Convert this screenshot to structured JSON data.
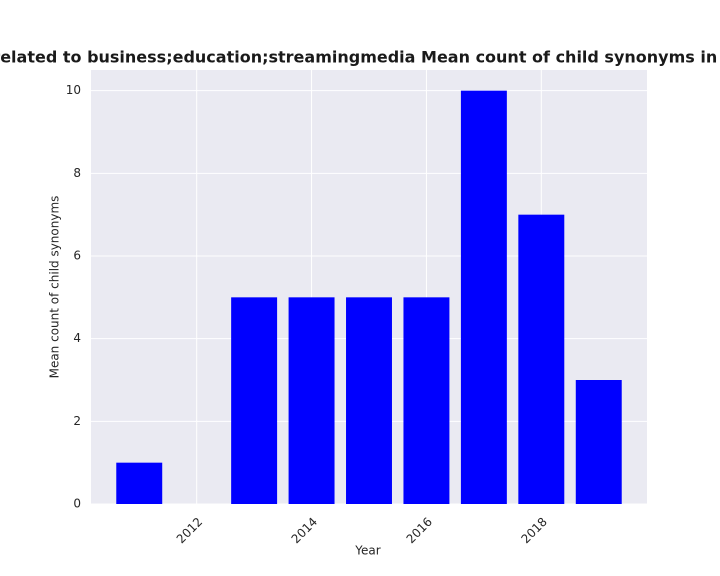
{
  "chart_data": {
    "type": "bar",
    "title": "es are related to business;education;streamingmedia Mean count of child synonyms in privacy",
    "x_label": "Year",
    "y_label": "Mean count of child synonyms",
    "x": [
      2011,
      2013,
      2014,
      2015,
      2016,
      2017,
      2018,
      2019
    ],
    "values": [
      1,
      5,
      5,
      5,
      5,
      10,
      7,
      3
    ],
    "color": "#0000ff",
    "xlim": [
      2010.16,
      2019.84
    ],
    "xticks": [
      2012,
      2014,
      2016,
      2018
    ],
    "ylim": [
      0,
      10.5
    ],
    "yticks": [
      0,
      2,
      4,
      6,
      8,
      10
    ],
    "grid": true
  }
}
